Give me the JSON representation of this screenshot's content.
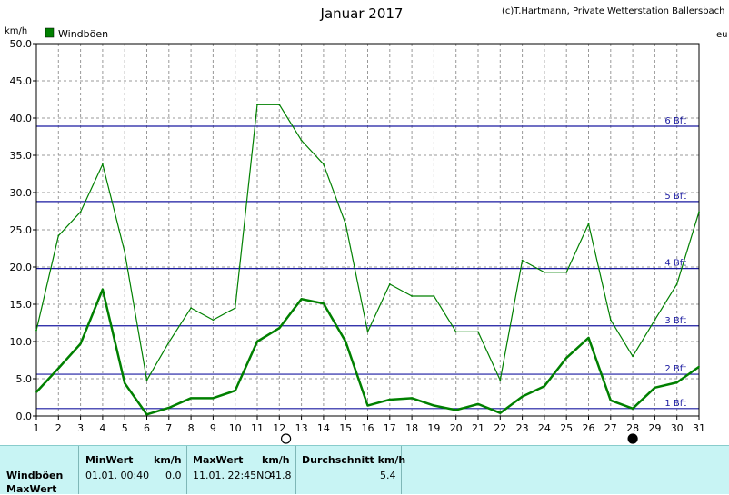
{
  "header": {
    "title": "Januar 2017",
    "credit": "(c)T.Hartmann, Private Wetterstation Ballersbach",
    "unit": "km/h",
    "right_stub": "eu"
  },
  "chart_data": {
    "type": "line",
    "title": "Januar 2017",
    "ylabel": "km/h",
    "xlabel": "",
    "ylim": [
      0,
      50
    ],
    "xlim": [
      1,
      31
    ],
    "x": [
      1,
      2,
      3,
      4,
      5,
      6,
      7,
      8,
      9,
      10,
      11,
      12,
      13,
      14,
      15,
      16,
      17,
      18,
      19,
      20,
      21,
      22,
      23,
      24,
      25,
      26,
      27,
      28,
      29,
      30,
      31
    ],
    "x_ticks": [
      "1",
      "2",
      "3",
      "4",
      "5",
      "6",
      "7",
      "8",
      "9",
      "10",
      "11",
      "12",
      "13",
      "14",
      "15",
      "16",
      "17",
      "18",
      "19",
      "20",
      "21",
      "22",
      "23",
      "24",
      "25",
      "26",
      "27",
      "28",
      "29",
      "30",
      "31"
    ],
    "y_ticks": [
      "0.0",
      "5.0",
      "10.0",
      "15.0",
      "20.0",
      "25.0",
      "30.0",
      "35.0",
      "40.0",
      "45.0",
      "50.0"
    ],
    "grid": true,
    "legend": [
      "Windböen"
    ],
    "legend_position": "top-left",
    "series": [
      {
        "name": "Windböen",
        "style": "thin",
        "color": "#008000",
        "values": [
          11.5,
          24.2,
          27.4,
          33.8,
          22.0,
          4.8,
          9.9,
          14.5,
          12.9,
          14.5,
          41.8,
          41.8,
          37.0,
          33.8,
          25.8,
          11.3,
          17.7,
          16.1,
          16.1,
          11.3,
          11.3,
          4.8,
          20.9,
          19.3,
          19.3,
          25.8,
          12.9,
          8.0,
          12.9,
          17.7,
          27.4
        ]
      },
      {
        "name": "",
        "style": "bold",
        "color": "#008000",
        "values": [
          3.2,
          6.4,
          9.7,
          17.0,
          4.4,
          0.2,
          1.1,
          2.4,
          2.4,
          3.4,
          10.0,
          11.8,
          15.7,
          15.1,
          10.0,
          1.4,
          2.2,
          2.4,
          1.4,
          0.8,
          1.6,
          0.4,
          2.6,
          4.0,
          7.8,
          10.5,
          2.1,
          1.0,
          3.8,
          4.5,
          6.6
        ]
      }
    ],
    "reference_lines": [
      {
        "label": "1 Bft",
        "value": 1.0
      },
      {
        "label": "2 Bft",
        "value": 5.6
      },
      {
        "label": "3 Bft",
        "value": 12.1
      },
      {
        "label": "4 Bft",
        "value": 19.8
      },
      {
        "label": "5 Bft",
        "value": 28.8
      },
      {
        "label": "6 Bft",
        "value": 38.9
      }
    ],
    "moon_phases": [
      {
        "day": 12.3,
        "type": "full"
      },
      {
        "day": 28,
        "type": "new"
      }
    ]
  },
  "table": {
    "row_label_1": "Windböen",
    "row_label_2": "MaxWert",
    "min_header": "MinWert",
    "min_unit": "km/h",
    "max_header": "MaxWert",
    "max_unit": "km/h",
    "avg_header": "Durchschnitt km/h",
    "min_datetime": "01.01.  00:40",
    "min_value": "0.0",
    "max_datetime": "11.01.  22:45NO",
    "max_value": "41.8",
    "avg_value": "5.4"
  }
}
